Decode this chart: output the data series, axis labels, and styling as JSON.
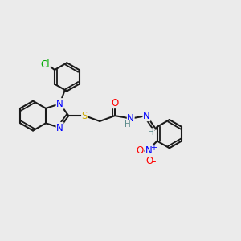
{
  "background_color": "#ebebeb",
  "bond_color": "#1a1a1a",
  "atom_colors": {
    "N": "#0000ff",
    "S": "#ccaa00",
    "O": "#ff0000",
    "Cl": "#00aa00",
    "H": "#5a8a8a",
    "C": "#1a1a1a"
  },
  "figsize": [
    3.0,
    3.0
  ],
  "dpi": 100
}
